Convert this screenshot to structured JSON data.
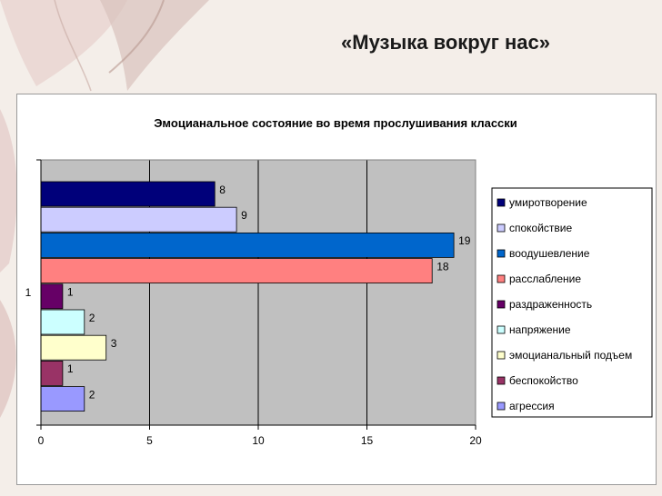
{
  "slide": {
    "title": "«Музыка вокруг нас»"
  },
  "chart_data": {
    "type": "bar",
    "orientation": "horizontal",
    "title": "Эмоцианальное состояние во время прослушивания класски",
    "category_label": "1",
    "xlim": [
      0,
      20
    ],
    "x_ticks": [
      0,
      5,
      10,
      15,
      20
    ],
    "grid": true,
    "legend_position": "right",
    "series": [
      {
        "name": "умиротворение",
        "value": 8,
        "color": "#00007a"
      },
      {
        "name": "спокойствие",
        "value": 9,
        "color": "#ccccff"
      },
      {
        "name": "воодушевление",
        "value": 19,
        "color": "#0066cc"
      },
      {
        "name": "расслабление",
        "value": 18,
        "color": "#ff8080"
      },
      {
        "name": "раздраженность",
        "value": 1,
        "color": "#660066"
      },
      {
        "name": "напряжение",
        "value": 2,
        "color": "#ccffff"
      },
      {
        "name": "эмоцианальный подъем",
        "value": 3,
        "color": "#ffffcc"
      },
      {
        "name": "беспокойство",
        "value": 1,
        "color": "#993366"
      },
      {
        "name": "агрессия",
        "value": 2,
        "color": "#9999ff"
      }
    ]
  }
}
